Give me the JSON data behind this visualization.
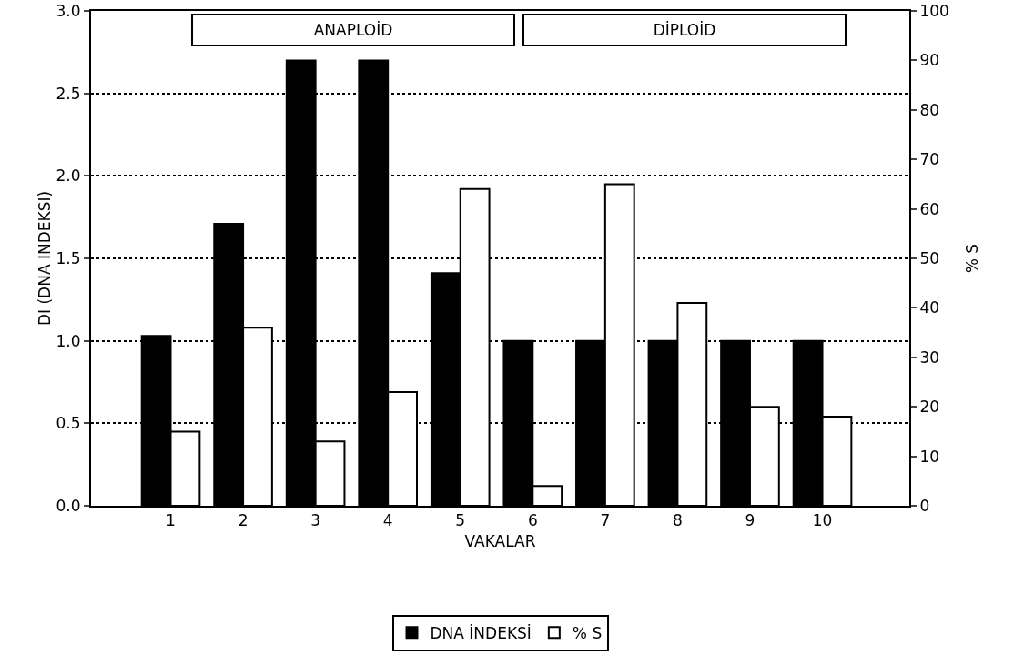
{
  "chart_data": {
    "type": "bar",
    "categories": [
      "1",
      "2",
      "3",
      "4",
      "5",
      "6",
      "7",
      "8",
      "9",
      "10"
    ],
    "xlabel": "VAKALAR",
    "ylabel": "DI (DNA INDEKSI)",
    "y2label": "% S",
    "series": [
      {
        "name": "DNA İNDEKSİ",
        "color": "#000000",
        "values": [
          1.03,
          1.71,
          2.7,
          2.7,
          1.41,
          1.0,
          1.0,
          1.0,
          1.0,
          1.0
        ]
      },
      {
        "name": "% S",
        "color": "#ffffff",
        "axis": "y2",
        "values": [
          15,
          36,
          13,
          23,
          64,
          4,
          65,
          41,
          20,
          18
        ]
      }
    ],
    "ylim": [
      0,
      3
    ],
    "yticks": [
      {
        "value": 0,
        "label": "0.0"
      },
      {
        "value": 0.5,
        "label": "0.5"
      },
      {
        "value": 1,
        "label": "1.0"
      },
      {
        "value": 1.5,
        "label": "1.5"
      },
      {
        "value": 2,
        "label": "2.0"
      },
      {
        "value": 2.5,
        "label": "2.5"
      },
      {
        "value": 3,
        "label": "3.0"
      }
    ],
    "y2lim": [
      0,
      100
    ],
    "y2ticks": [
      0,
      10,
      20,
      30,
      40,
      50,
      60,
      70,
      80,
      90,
      100
    ],
    "annotations": [
      "ANAPLOİD",
      "DİPLOİD"
    ],
    "grid": "y",
    "line_style": "dotted",
    "legend": "bottom"
  }
}
